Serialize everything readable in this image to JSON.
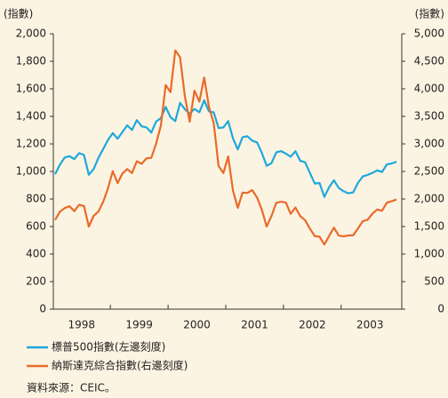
{
  "chart_data": {
    "type": "line",
    "y_label": "(指數)",
    "y2_label": "(指數)",
    "source": "資料來源：CEIC。",
    "categories": [
      null,
      null,
      null,
      null,
      null,
      null,
      "1998",
      null,
      null,
      null,
      null,
      null,
      null,
      null,
      null,
      null,
      null,
      null,
      "1999",
      null,
      null,
      null,
      null,
      null,
      null,
      null,
      null,
      null,
      null,
      null,
      "2000",
      null,
      null,
      null,
      null,
      null,
      null,
      null,
      null,
      null,
      null,
      null,
      "2001",
      null,
      null,
      null,
      null,
      null,
      null,
      null,
      null,
      null,
      null,
      null,
      "2002",
      null,
      null,
      null,
      null,
      null,
      null,
      null,
      null,
      null,
      null,
      null,
      "2003",
      null,
      null,
      null,
      null,
      null
    ],
    "series": [
      {
        "name": "標普500指數(左邊刻度)",
        "color": "#1ea8dc",
        "axis": "y",
        "values": [
          980,
          1049,
          1101,
          1111,
          1090,
          1133,
          1120,
          976,
          1017,
          1098,
          1163,
          1229,
          1279,
          1238,
          1286,
          1335,
          1301,
          1372,
          1328,
          1320,
          1282,
          1362,
          1388,
          1469,
          1394,
          1366,
          1498,
          1452,
          1420,
          1454,
          1430,
          1517,
          1436,
          1429,
          1315,
          1320,
          1366,
          1240,
          1160,
          1249,
          1256,
          1224,
          1211,
          1134,
          1041,
          1060,
          1139,
          1148,
          1130,
          1107,
          1147,
          1077,
          1067,
          990,
          912,
          916,
          815,
          886,
          936,
          880,
          856,
          841,
          848,
          917,
          964,
          975,
          990,
          1008,
          996,
          1051,
          1058,
          1070
        ]
      },
      {
        "name": "納斯達克綜合指數(右邊刻度)",
        "color": "#ea6a2a",
        "axis": "y2",
        "values": [
          1619,
          1771,
          1835,
          1868,
          1779,
          1895,
          1873,
          1499,
          1694,
          1771,
          1950,
          2193,
          2506,
          2288,
          2461,
          2543,
          2471,
          2686,
          2638,
          2739,
          2746,
          3004,
          3336,
          4069,
          3940,
          4697,
          4573,
          3861,
          3401,
          3966,
          3767,
          4206,
          3673,
          3370,
          2598,
          2471,
          2773,
          2152,
          1840,
          2116,
          2110,
          2161,
          2027,
          1805,
          1499,
          1690,
          1931,
          1950,
          1934,
          1731,
          1845,
          1688,
          1616,
          1463,
          1328,
          1315,
          1172,
          1330,
          1479,
          1336,
          1321,
          1338,
          1341,
          1464,
          1596,
          1623,
          1735,
          1810,
          1787,
          1932,
          1960,
          1990
        ]
      }
    ],
    "ylim": [
      0,
      2000
    ],
    "yticks": [
      0,
      200,
      400,
      600,
      800,
      {
        "value": 1000,
        "label": "1,000"
      },
      {
        "value": 1200,
        "label": "1,200"
      },
      {
        "value": 1400,
        "label": "1,400"
      },
      {
        "value": 1600,
        "label": "1,600"
      },
      {
        "value": 1800,
        "label": "1,800"
      },
      {
        "value": 2000,
        "label": "2,000"
      }
    ],
    "y2lim": [
      0,
      5000
    ],
    "y2ticks": [
      0,
      500,
      {
        "value": 1000,
        "label": "1,000"
      },
      {
        "value": 1500,
        "label": "1,500"
      },
      {
        "value": 2000,
        "label": "2,000"
      },
      {
        "value": 2500,
        "label": "2,500"
      },
      {
        "value": 3000,
        "label": "3,000"
      },
      {
        "value": 3500,
        "label": "3,500"
      },
      {
        "value": 4000,
        "label": "4,000"
      },
      {
        "value": 4500,
        "label": "4,500"
      },
      {
        "value": 5000,
        "label": "5,000"
      }
    ]
  }
}
